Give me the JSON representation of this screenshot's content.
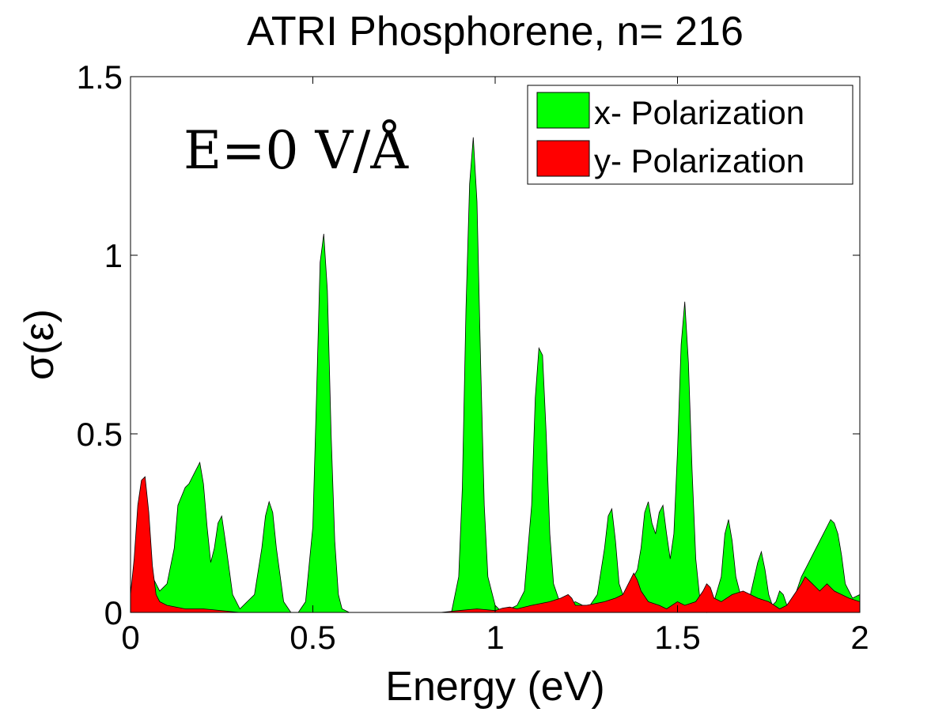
{
  "chart_data": {
    "type": "area",
    "title": "ATRI Phosphorene, n= 216",
    "xlabel": "Energy (eV)",
    "ylabel": "σ(ε)",
    "annotation": "E=0 V/Å",
    "xlim": [
      0,
      2
    ],
    "ylim": [
      0,
      1.5
    ],
    "xticks": [
      0,
      0.5,
      1,
      1.5,
      2
    ],
    "xtick_labels": [
      "0",
      "0.5",
      "1",
      "1.5",
      "2"
    ],
    "yticks": [
      0,
      0.5,
      1,
      1.5
    ],
    "ytick_labels": [
      "0",
      "0.5",
      "1",
      "1.5"
    ],
    "grid": false,
    "legend_position": "top-right",
    "series": [
      {
        "name": "x- Polarization",
        "color": "#00ff00",
        "x": [
          0,
          0.02,
          0.04,
          0.06,
          0.08,
          0.1,
          0.12,
          0.13,
          0.15,
          0.16,
          0.18,
          0.19,
          0.2,
          0.21,
          0.22,
          0.23,
          0.24,
          0.25,
          0.26,
          0.28,
          0.3,
          0.32,
          0.34,
          0.36,
          0.37,
          0.38,
          0.39,
          0.4,
          0.42,
          0.44,
          0.46,
          0.48,
          0.5,
          0.51,
          0.52,
          0.53,
          0.54,
          0.55,
          0.56,
          0.57,
          0.58,
          0.6,
          0.7,
          0.8,
          0.88,
          0.9,
          0.91,
          0.92,
          0.93,
          0.94,
          0.95,
          0.96,
          0.97,
          0.98,
          1.0,
          1.02,
          1.04,
          1.06,
          1.08,
          1.1,
          1.11,
          1.12,
          1.13,
          1.14,
          1.15,
          1.16,
          1.18,
          1.2,
          1.22,
          1.24,
          1.26,
          1.28,
          1.3,
          1.31,
          1.32,
          1.33,
          1.34,
          1.35,
          1.37,
          1.39,
          1.4,
          1.41,
          1.42,
          1.43,
          1.44,
          1.45,
          1.46,
          1.47,
          1.48,
          1.49,
          1.5,
          1.51,
          1.52,
          1.53,
          1.54,
          1.55,
          1.56,
          1.58,
          1.6,
          1.62,
          1.63,
          1.64,
          1.65,
          1.66,
          1.67,
          1.68,
          1.7,
          1.72,
          1.73,
          1.74,
          1.75,
          1.76,
          1.77,
          1.78,
          1.79,
          1.8,
          1.82,
          1.84,
          1.86,
          1.88,
          1.89,
          1.9,
          1.91,
          1.92,
          1.93,
          1.94,
          1.95,
          1.96,
          1.98,
          2.0
        ],
        "values": [
          0.06,
          0.12,
          0.2,
          0.1,
          0.06,
          0.08,
          0.18,
          0.3,
          0.35,
          0.36,
          0.4,
          0.42,
          0.36,
          0.24,
          0.14,
          0.18,
          0.25,
          0.27,
          0.2,
          0.05,
          0.01,
          0.03,
          0.05,
          0.18,
          0.27,
          0.31,
          0.28,
          0.18,
          0.03,
          0.0,
          0.0,
          0.03,
          0.24,
          0.6,
          0.98,
          1.06,
          0.9,
          0.5,
          0.2,
          0.05,
          0.01,
          0.0,
          0.0,
          0.0,
          0.0,
          0.1,
          0.35,
          0.85,
          1.2,
          1.33,
          1.15,
          0.7,
          0.3,
          0.1,
          0.02,
          0.0,
          0.01,
          0.02,
          0.06,
          0.3,
          0.6,
          0.74,
          0.72,
          0.5,
          0.22,
          0.08,
          0.02,
          0.02,
          0.03,
          0.02,
          0.02,
          0.05,
          0.18,
          0.27,
          0.29,
          0.2,
          0.08,
          0.05,
          0.08,
          0.12,
          0.18,
          0.28,
          0.31,
          0.25,
          0.22,
          0.28,
          0.3,
          0.22,
          0.15,
          0.22,
          0.45,
          0.75,
          0.87,
          0.7,
          0.4,
          0.15,
          0.05,
          0.0,
          0.03,
          0.1,
          0.22,
          0.26,
          0.2,
          0.1,
          0.06,
          0.04,
          0.05,
          0.14,
          0.17,
          0.12,
          0.05,
          0.02,
          0.03,
          0.06,
          0.05,
          0.02,
          0.04,
          0.1,
          0.14,
          0.18,
          0.2,
          0.22,
          0.24,
          0.26,
          0.25,
          0.22,
          0.16,
          0.08,
          0.04,
          0.05
        ]
      },
      {
        "name": "y- Polarization",
        "color": "#ff0000",
        "x": [
          0,
          0.01,
          0.02,
          0.03,
          0.04,
          0.05,
          0.06,
          0.07,
          0.08,
          0.1,
          0.15,
          0.2,
          0.3,
          0.4,
          0.6,
          0.85,
          0.9,
          0.95,
          1.0,
          1.02,
          1.04,
          1.06,
          1.1,
          1.15,
          1.18,
          1.2,
          1.21,
          1.22,
          1.25,
          1.3,
          1.33,
          1.35,
          1.37,
          1.38,
          1.39,
          1.4,
          1.42,
          1.45,
          1.47,
          1.5,
          1.52,
          1.55,
          1.57,
          1.58,
          1.59,
          1.6,
          1.62,
          1.65,
          1.68,
          1.7,
          1.72,
          1.75,
          1.78,
          1.8,
          1.82,
          1.84,
          1.85,
          1.86,
          1.87,
          1.88,
          1.89,
          1.9,
          1.91,
          1.92,
          1.93,
          1.95,
          1.97,
          2.0
        ],
        "values": [
          0.05,
          0.15,
          0.3,
          0.37,
          0.38,
          0.28,
          0.13,
          0.05,
          0.03,
          0.02,
          0.01,
          0.01,
          0.0,
          0.0,
          0.0,
          0.0,
          0.005,
          0.01,
          0.005,
          0.012,
          0.015,
          0.01,
          0.02,
          0.03,
          0.04,
          0.05,
          0.04,
          0.02,
          0.02,
          0.03,
          0.04,
          0.05,
          0.09,
          0.11,
          0.09,
          0.06,
          0.03,
          0.02,
          0.01,
          0.03,
          0.02,
          0.03,
          0.06,
          0.08,
          0.07,
          0.04,
          0.03,
          0.05,
          0.06,
          0.05,
          0.04,
          0.03,
          0.01,
          0.02,
          0.05,
          0.08,
          0.1,
          0.09,
          0.08,
          0.07,
          0.06,
          0.07,
          0.08,
          0.07,
          0.06,
          0.05,
          0.04,
          0.03
        ]
      }
    ]
  }
}
